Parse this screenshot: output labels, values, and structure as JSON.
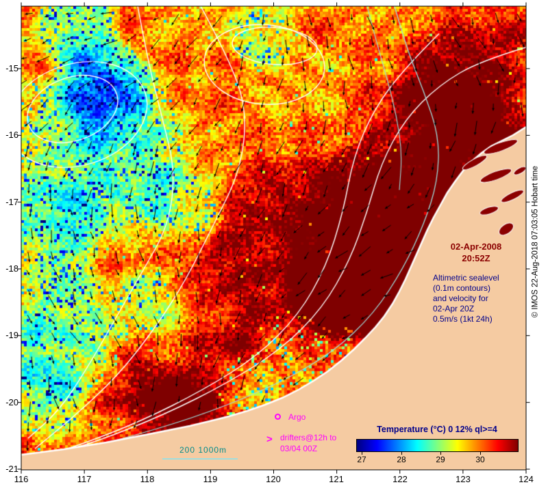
{
  "axes": {
    "x_ticks": [
      "116",
      "117",
      "118",
      "119",
      "120",
      "121",
      "122",
      "123",
      "124"
    ],
    "y_ticks": [
      "-15",
      "-16",
      "-17",
      "-18",
      "-19",
      "-20",
      "-21"
    ],
    "lon_range": [
      116,
      124
    ],
    "lat_range": [
      -21.0,
      -14.1
    ]
  },
  "annotations": {
    "datetime": {
      "line1": "02-Apr-2008",
      "line2": "20:52Z"
    },
    "altimetry": {
      "line1": "Altimetric sealevel",
      "line2": "(0.1m contours)",
      "line3": "and velocity for",
      "line4": "02-Apr 20Z",
      "line5": "0.5m/s (1kt 24h)"
    },
    "argo": {
      "label": "Argo"
    },
    "drifters": {
      "line1": "drifters@12h to",
      "line2": "03/04 00Z",
      "arrow": ">"
    },
    "isobath_legend": {
      "label": "200 1000m"
    }
  },
  "colorbar": {
    "title": "Temperature (°C) 0 12% ql>=4",
    "tick_labels": [
      "27",
      "28",
      "29",
      "30"
    ],
    "value_range": [
      26.9,
      31.0
    ],
    "gradient_stops": [
      "#000080",
      "#0000ff",
      "#00ffff",
      "#ffff00",
      "#ff0000",
      "#800000"
    ]
  },
  "provenance": "© IMOS 22-Aug-2018 07:03:05 Hobart time",
  "colors": {
    "land": "#f5cba2",
    "annotation_date": "#8b0000",
    "annotation_altimetry": "#00008b",
    "magenta": "#ff00ff",
    "isobath_cyan": "#9fdede",
    "isobath_label": "#008b8b",
    "contour_white": "#ffffff",
    "arrow_black": "#000000",
    "colorbar_title": "#00008b"
  }
}
